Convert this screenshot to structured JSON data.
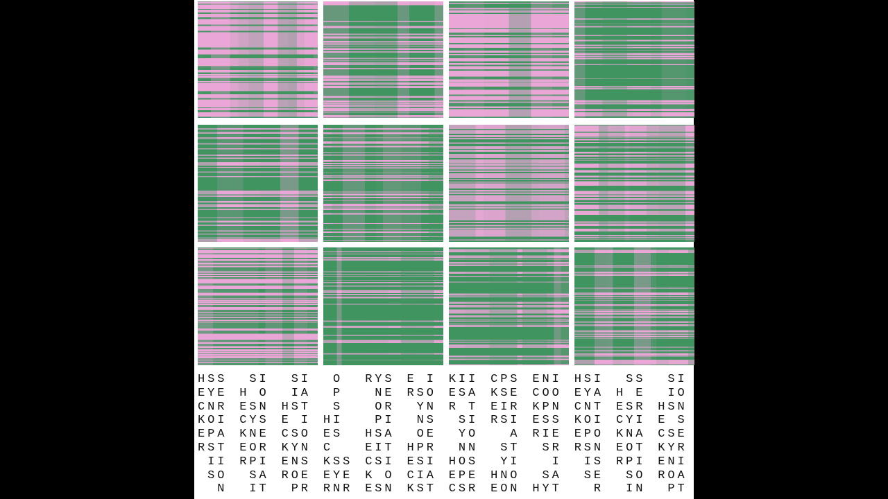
{
  "text": {
    "lines": [
      [
        "HSS",
        " SI",
        " SI",
        " O ",
        "RYS",
        "E I",
        "KII",
        "CPS",
        "ENI",
        "HSI",
        " SS",
        " SI"
      ],
      [
        "EYE",
        "H O",
        " IA",
        " P ",
        " NE",
        "RSO",
        "ESA",
        "KSE",
        "COO",
        "EYA",
        "H E",
        " IO"
      ],
      [
        "CNR",
        "ESN",
        "HST",
        " S ",
        " OR",
        " YN",
        "R T",
        "EIR",
        "KPN",
        "CNT",
        "ESR",
        "HSN"
      ],
      [
        "KOI",
        "CYS",
        "E I",
        "HI ",
        " PI",
        " NS",
        " SI",
        "RSI",
        "ESS",
        "KOI",
        "CYI",
        "E S"
      ],
      [
        "EPA",
        "KNE",
        "CSO",
        "ES ",
        "HSA",
        " OE",
        " YO",
        "  A",
        "RIE",
        "EPO",
        "KNA",
        "CSE"
      ],
      [
        "RST",
        "EOR",
        "KYN",
        "C  ",
        "EIT",
        "HPR",
        " NN",
        " ST",
        " SR",
        "RSN",
        "EOT",
        "KYR"
      ],
      [
        " II",
        "RPI",
        "ENS",
        "KSS",
        "CSI",
        "ESI",
        "HOS",
        " YI",
        "  I",
        " IS",
        "RPI",
        "ENI"
      ],
      [
        " SO",
        " SA",
        "ROE",
        "EYE",
        "K O",
        "CIA",
        "EPE",
        "HNO",
        " SA",
        " SE",
        " SO",
        "ROA"
      ],
      [
        "  N",
        " IT",
        " PR",
        "RNR",
        "ESN",
        "KST",
        "CSR",
        "EON",
        "HYT",
        "  R",
        " IN",
        " PT"
      ]
    ]
  }
}
